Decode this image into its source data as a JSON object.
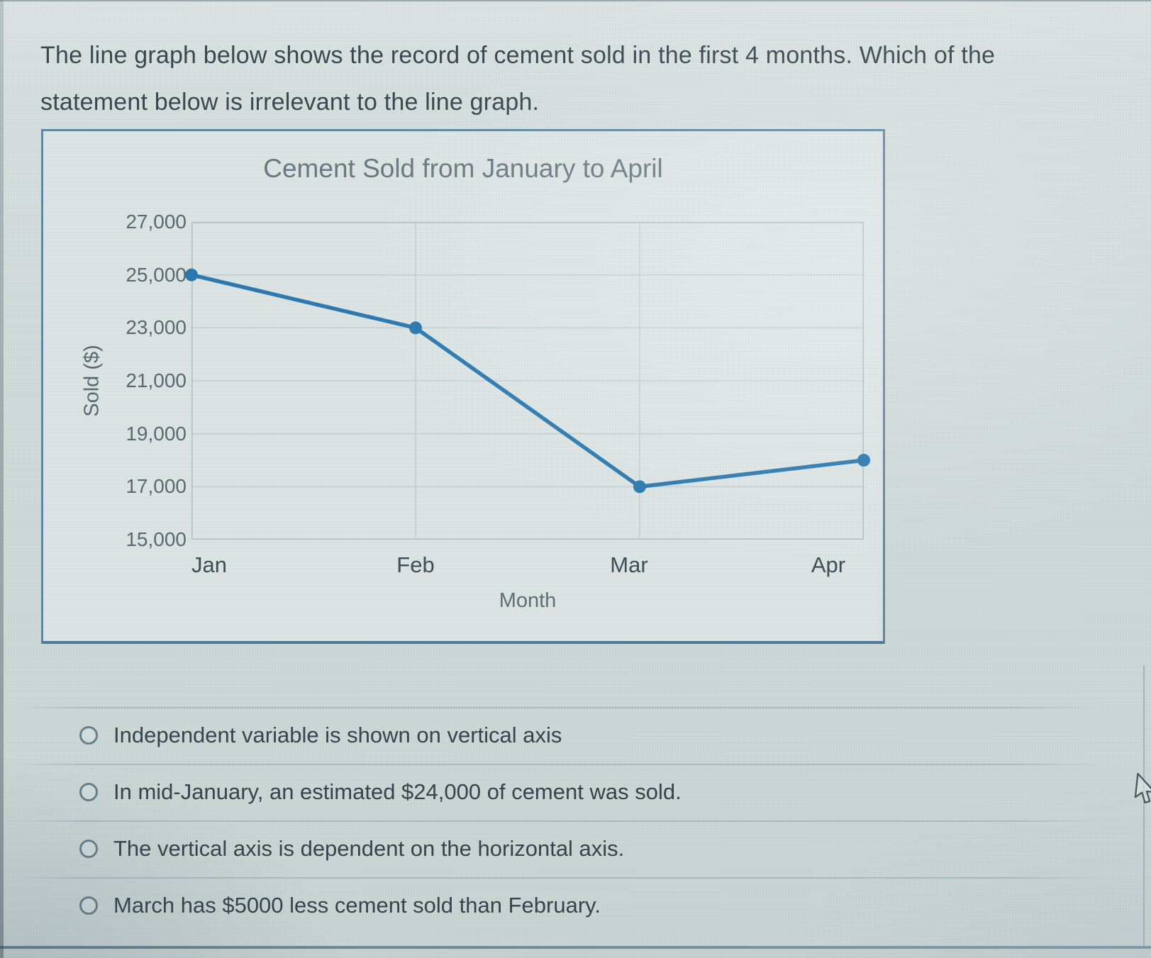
{
  "question": {
    "line1": "The line graph below shows the record of cement sold in the first 4 months. Which of the",
    "line2": "statement below is irrelevant to the line graph."
  },
  "chart_data": {
    "type": "line",
    "title": "Cement Sold from January to April",
    "xlabel": "Month",
    "ylabel": "Sold ($)",
    "categories": [
      "Jan",
      "Feb",
      "Mar",
      "Apr"
    ],
    "values": [
      25000,
      23000,
      17000,
      18000
    ],
    "ylim": [
      15000,
      27000
    ],
    "y_tick_step": 2000,
    "y_tick_labels": [
      "27,000",
      "25,000",
      "23,000",
      "21,000",
      "19,000",
      "17,000",
      "15,000"
    ],
    "grid": true,
    "legend": "none",
    "line_color": "#2b79b0",
    "marker_color": "#2878ae"
  },
  "options": [
    {
      "label": "Independent variable is shown on vertical axis"
    },
    {
      "label": "In mid-January, an estimated $24,000 of cement was sold."
    },
    {
      "label": "The vertical axis is dependent on the horizontal axis."
    },
    {
      "label": "March has $5000 less cement sold than February."
    }
  ],
  "colors": {
    "card_border": "#5e86a5",
    "grid_line": "#c4cfd1",
    "plot_border": "#b3c0c3",
    "text_dark": "#33434e",
    "text_axis": "#5a6772"
  }
}
